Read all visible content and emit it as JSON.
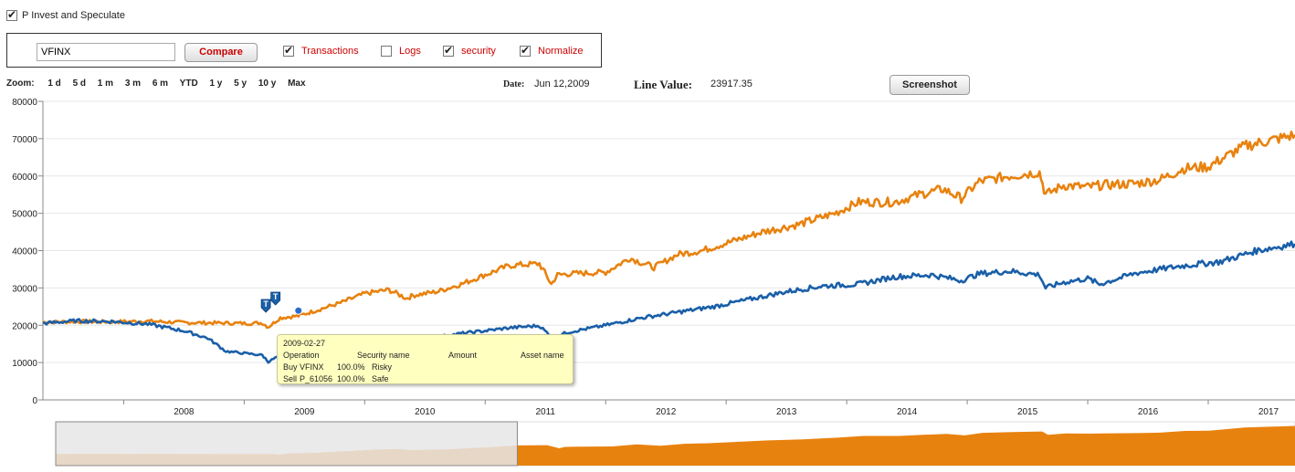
{
  "header": {
    "portfolio_checkbox_label": "P Invest and Speculate",
    "portfolio_checked": true
  },
  "controls": {
    "ticker_value": "VFINX",
    "compare_label": "Compare",
    "options": [
      {
        "label": "Transactions",
        "checked": true
      },
      {
        "label": "Logs",
        "checked": false
      },
      {
        "label": "security",
        "checked": true
      },
      {
        "label": "Normalize",
        "checked": true
      }
    ]
  },
  "zoom": {
    "label": "Zoom:",
    "options": [
      "1 d",
      "5 d",
      "1 m",
      "3 m",
      "6 m",
      "YTD",
      "1 y",
      "5 y",
      "10 y",
      "Max"
    ]
  },
  "info": {
    "date_label": "Date:",
    "date_value": "Jun 12,2009",
    "line_value_label": "Line Value:",
    "line_value": "23917.35"
  },
  "screenshot_label": "Screenshot",
  "tooltip": {
    "date": "2009-02-27",
    "headers": [
      "Operation",
      "Security name",
      "Amount",
      "Asset name"
    ],
    "rows": [
      [
        "Buy",
        "VFINX",
        "100.0%",
        "Risky"
      ],
      [
        "Sell",
        "P_61056",
        "100.0%",
        "Safe"
      ]
    ]
  },
  "chart_data": {
    "type": "line",
    "title": "",
    "xlabel": "",
    "ylabel": "",
    "xlim": [
      2007.33,
      2017.72
    ],
    "ylim": [
      0,
      80000
    ],
    "yticks": [
      0,
      10000,
      20000,
      30000,
      40000,
      50000,
      60000,
      70000,
      80000
    ],
    "xticks": [
      "2008",
      "2009",
      "2010",
      "2011",
      "2012",
      "2013",
      "2014",
      "2015",
      "2016",
      "2017"
    ],
    "grid": true,
    "colors": {
      "orange": "#e8820f",
      "blue": "#1a5fa8"
    },
    "series": [
      {
        "color": "#e8820f",
        "x": [
          2007.33,
          2007.6,
          2007.9,
          2008.2,
          2008.5,
          2008.8,
          2009.0,
          2009.15,
          2009.2,
          2009.3,
          2009.45,
          2009.6,
          2009.8,
          2010.0,
          2010.2,
          2010.35,
          2010.4,
          2010.6,
          2010.8,
          2011.0,
          2011.2,
          2011.45,
          2011.55,
          2011.6,
          2011.7,
          2012.0,
          2012.2,
          2012.4,
          2012.6,
          2012.8,
          2013.0,
          2013.3,
          2013.6,
          2013.9,
          2014.1,
          2014.4,
          2014.6,
          2014.8,
          2014.95,
          2015.1,
          2015.35,
          2015.6,
          2015.65,
          2015.8,
          2016.0,
          2016.1,
          2016.4,
          2016.6,
          2016.8,
          2017.0,
          2017.3,
          2017.72
        ],
        "y": [
          20800,
          21000,
          20900,
          21100,
          20700,
          20600,
          20500,
          20600,
          19500,
          22000,
          22500,
          24000,
          26000,
          28500,
          29500,
          27200,
          28000,
          29000,
          31000,
          33500,
          36000,
          36500,
          31000,
          33500,
          33800,
          34200,
          38000,
          35500,
          39000,
          40000,
          42000,
          45000,
          47000,
          50000,
          53000,
          53000,
          55000,
          56500,
          54000,
          58500,
          60000,
          61000,
          55000,
          57500,
          57000,
          57500,
          58000,
          59000,
          62000,
          62500,
          68000,
          71000
        ]
      },
      {
        "color": "#1a5fa8",
        "x": [
          2007.33,
          2007.6,
          2007.9,
          2008.2,
          2008.5,
          2008.7,
          2008.85,
          2009.0,
          2009.15,
          2009.2,
          2009.3,
          2009.45,
          2009.6,
          2009.8,
          2010.0,
          2010.2,
          2010.35,
          2010.45,
          2010.6,
          2010.8,
          2011.0,
          2011.2,
          2011.45,
          2011.55,
          2011.6,
          2011.7,
          2012.0,
          2012.3,
          2012.6,
          2012.9,
          2013.2,
          2013.5,
          2013.8,
          2014.1,
          2014.4,
          2014.7,
          2014.95,
          2015.1,
          2015.35,
          2015.6,
          2015.65,
          2015.8,
          2016.0,
          2016.1,
          2016.4,
          2016.8,
          2017.1,
          2017.4,
          2017.72
        ],
        "y": [
          20500,
          21200,
          21000,
          20300,
          18500,
          16500,
          13000,
          12500,
          12000,
          10200,
          12000,
          13200,
          13800,
          14800,
          16000,
          17200,
          15500,
          16300,
          16800,
          17800,
          18500,
          19300,
          19900,
          16800,
          17300,
          18200,
          20000,
          22000,
          23500,
          25000,
          27000,
          29000,
          30500,
          31000,
          33000,
          33500,
          32000,
          33800,
          34500,
          33500,
          30000,
          31500,
          32500,
          31000,
          34000,
          36000,
          37000,
          40000,
          41800
        ]
      }
    ],
    "markers": [
      {
        "label": "T",
        "x": 2009.18
      },
      {
        "label": "T",
        "x": 2009.26
      }
    ],
    "highlight_point": {
      "x": 2009.45,
      "y": 23917.35
    },
    "navigator": {
      "selection_x": [
        2007.33,
        2011.2
      ]
    }
  }
}
